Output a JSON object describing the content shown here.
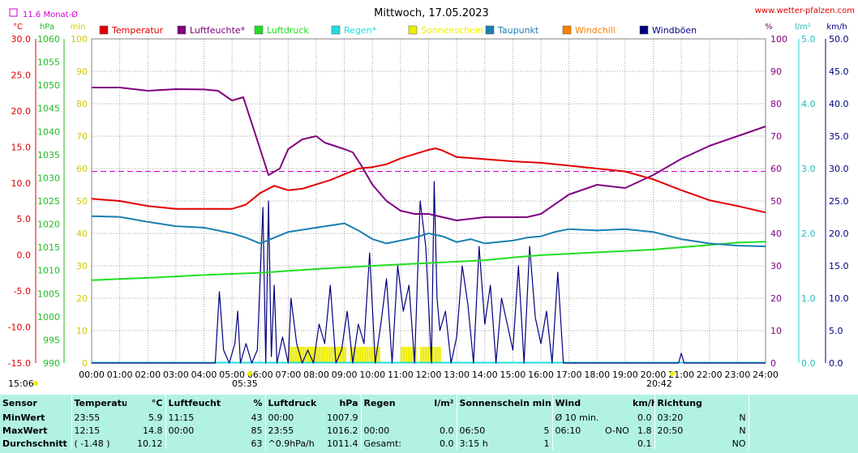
{
  "header": {
    "date_title": "Mittwoch, 17.05.2023",
    "source_url": "www.wetter-pfalzen.com",
    "monthly_avg_label": "11.6 Monat-Ø",
    "start_time": "15:06",
    "sunrise_time": "05:35",
    "sunset_time": "20:42"
  },
  "axes": {
    "left_units": [
      "°C",
      "hPa",
      "min"
    ],
    "right_units": [
      "%",
      "l/m²",
      "km/h"
    ],
    "temp_ticks": [
      "30.0",
      "25.0",
      "20.0",
      "15.0",
      "10.0",
      "5.0",
      "0.0",
      "-5.0",
      "-10.0",
      "-15.0"
    ],
    "pressure_ticks": [
      "1060",
      "1055",
      "1050",
      "1045",
      "1040",
      "1035",
      "1030",
      "1025",
      "1020",
      "1015",
      "1010",
      "1005",
      "1000",
      "995",
      "990"
    ],
    "min_ticks": [
      "100",
      "90",
      "80",
      "70",
      "60",
      "50",
      "40",
      "30",
      "20",
      "10",
      "0"
    ],
    "humidity_ticks": [
      "100",
      "90",
      "80",
      "70",
      "60",
      "50",
      "40",
      "30",
      "20",
      "10",
      "0"
    ],
    "rain_ticks": [
      "5.0",
      "4.0",
      "3.0",
      "2.0",
      "1.0",
      "0.0"
    ],
    "wind_ticks": [
      "50.0",
      "45.0",
      "40.0",
      "35.0",
      "30.0",
      "25.0",
      "20.0",
      "15.0",
      "10.0",
      "5.0",
      "0.0"
    ],
    "x_ticks": [
      "00:00",
      "01:00",
      "02:00",
      "03:00",
      "04:00",
      "05:00",
      "06:00",
      "07:00",
      "08:00",
      "09:00",
      "10:00",
      "11:00",
      "12:00",
      "13:00",
      "14:00",
      "15:00",
      "16:00",
      "17:00",
      "18:00",
      "19:00",
      "20:00",
      "21:00",
      "22:00",
      "23:00",
      "24:00"
    ]
  },
  "legend": [
    {
      "label": "Temperatur",
      "color": "#e00000"
    },
    {
      "label": "Luftfeuchte*",
      "color": "#800080"
    },
    {
      "label": "Luftdruck",
      "color": "#22dd22"
    },
    {
      "label": "Regen*",
      "color": "#22dddd"
    },
    {
      "label": "Sonnenschein",
      "color": "#eeee00"
    },
    {
      "label": "Taupunkt",
      "color": "#1a7fb0"
    },
    {
      "label": "Windchill",
      "color": "#ff7f00"
    },
    {
      "label": "Windböen",
      "color": "#000080"
    }
  ],
  "chart_data": {
    "type": "line",
    "title": "Mittwoch, 17.05.2023",
    "x_range": [
      0,
      24
    ],
    "monthly_avg_temp": 11.6,
    "series": [
      {
        "name": "Temperatur",
        "axis": "temp",
        "ylim": [
          -15,
          30
        ],
        "color": "#e00000",
        "x": [
          0,
          1,
          2,
          3,
          4,
          5,
          5.5,
          6,
          6.5,
          7,
          7.5,
          8,
          8.5,
          9,
          9.5,
          10,
          10.5,
          11,
          11.5,
          12,
          12.25,
          12.5,
          13,
          14,
          15,
          16,
          17,
          18,
          19,
          20,
          21,
          22,
          23,
          24
        ],
        "y": [
          7.8,
          7.5,
          6.8,
          6.4,
          6.4,
          6.4,
          7.0,
          8.6,
          9.6,
          9.0,
          9.2,
          9.8,
          10.4,
          11.2,
          12.0,
          12.2,
          12.6,
          13.4,
          14.0,
          14.6,
          14.8,
          14.5,
          13.6,
          13.3,
          13.0,
          12.8,
          12.4,
          12.0,
          11.6,
          10.5,
          9.0,
          7.6,
          6.8,
          5.9
        ]
      },
      {
        "name": "Luftfeuchte*",
        "axis": "humidity",
        "ylim": [
          0,
          100
        ],
        "color": "#800080",
        "x": [
          0,
          1,
          2,
          3,
          4,
          4.5,
          5,
          5.4,
          6,
          6.3,
          6.7,
          7,
          7.5,
          8,
          8.3,
          9,
          9.3,
          9.6,
          10,
          10.5,
          11,
          11.5,
          12,
          13,
          14,
          15,
          15.5,
          16,
          17,
          18,
          19,
          20,
          21,
          22,
          23,
          24
        ],
        "y": [
          85,
          85,
          84,
          84.5,
          84.4,
          84,
          81,
          82,
          66,
          58,
          60,
          66,
          69,
          70,
          68,
          66,
          65,
          61,
          55,
          50,
          47,
          46,
          46,
          44,
          45,
          45,
          45,
          46,
          52,
          55,
          54,
          58,
          63,
          67,
          70,
          73
        ]
      },
      {
        "name": "Luftdruck",
        "axis": "pressure",
        "ylim": [
          990,
          1060
        ],
        "color": "#22dd22",
        "x": [
          0,
          2,
          4,
          6,
          8,
          10,
          12,
          14,
          15,
          16,
          17,
          18,
          19,
          20,
          21,
          22,
          23,
          24
        ],
        "y": [
          1007.9,
          1008.4,
          1009.0,
          1009.5,
          1010.3,
          1011.0,
          1011.6,
          1012.2,
          1012.8,
          1013.3,
          1013.6,
          1013.9,
          1014.2,
          1014.5,
          1015.0,
          1015.5,
          1016.0,
          1016.2
        ]
      },
      {
        "name": "Taupunkt",
        "axis": "temp",
        "ylim": [
          -15,
          30
        ],
        "color": "#1a7fb0",
        "x": [
          0,
          1,
          2,
          3,
          4,
          5,
          5.5,
          6,
          6.5,
          7,
          8,
          9,
          9.5,
          10,
          10.5,
          11,
          11.5,
          12,
          12.5,
          13,
          13.5,
          14,
          15,
          15.5,
          16,
          16.5,
          17,
          18,
          19,
          20,
          21,
          22,
          23,
          24
        ],
        "y": [
          5.4,
          5.3,
          4.6,
          4.0,
          3.8,
          3.0,
          2.4,
          1.6,
          2.4,
          3.2,
          3.8,
          4.4,
          3.4,
          2.2,
          1.6,
          2.0,
          2.4,
          3.0,
          2.6,
          1.8,
          2.2,
          1.6,
          2.0,
          2.4,
          2.6,
          3.2,
          3.6,
          3.4,
          3.6,
          3.2,
          2.2,
          1.6,
          1.3,
          1.2
        ]
      },
      {
        "name": "Windböen",
        "axis": "wind",
        "ylim": [
          0,
          50
        ],
        "color": "#000080",
        "x": [
          0,
          4.4,
          4.55,
          4.7,
          4.9,
          5.1,
          5.2,
          5.3,
          5.5,
          5.7,
          5.9,
          6.1,
          6.2,
          6.3,
          6.4,
          6.5,
          6.6,
          6.8,
          7.0,
          7.1,
          7.3,
          7.5,
          7.7,
          7.9,
          8.1,
          8.3,
          8.5,
          8.7,
          8.9,
          9.1,
          9.3,
          9.5,
          9.7,
          9.9,
          10.1,
          10.3,
          10.5,
          10.7,
          10.9,
          11.1,
          11.3,
          11.5,
          11.7,
          11.9,
          12.1,
          12.2,
          12.3,
          12.4,
          12.6,
          12.8,
          13.0,
          13.2,
          13.4,
          13.6,
          13.8,
          14.0,
          14.2,
          14.4,
          14.6,
          14.8,
          15.0,
          15.2,
          15.4,
          15.6,
          15.8,
          16.0,
          16.2,
          16.4,
          16.6,
          16.8,
          17.0,
          20.9,
          21.0,
          21.1,
          24
        ],
        "y": [
          0,
          0,
          11,
          2,
          0,
          3,
          8,
          0,
          3,
          0,
          2,
          24,
          0,
          25,
          1,
          12,
          0,
          4,
          0,
          10,
          3,
          0,
          2,
          0,
          6,
          3,
          12,
          0,
          2,
          8,
          0,
          6,
          3,
          17,
          0,
          6,
          13,
          0,
          15,
          8,
          12,
          0,
          25,
          18,
          0,
          28,
          10,
          5,
          8,
          0,
          4,
          15,
          9,
          0,
          18,
          6,
          12,
          0,
          10,
          6,
          2,
          15,
          0,
          18,
          7,
          3,
          8,
          0,
          14,
          0,
          0,
          0,
          1.5,
          0,
          0
        ]
      }
    ],
    "sunshine_periods": [
      [
        7.0,
        9.0
      ],
      [
        9.2,
        10.2
      ],
      [
        11.0,
        11.5
      ],
      [
        11.7,
        12.4
      ]
    ]
  },
  "stats": {
    "headers": {
      "sensor": "Sensor",
      "temp": "Temperatur",
      "temp_unit": "°C",
      "hum": "Luftfeuchte",
      "hum_unit": "%",
      "press": "Luftdruck",
      "press_unit": "hPa",
      "rain": "Regen",
      "rain_unit": "l/m²",
      "sun": "Sonnenschein min",
      "wind": "Wind",
      "wind_unit": "km/h",
      "dir": "Richtung"
    },
    "rows": [
      {
        "label": "MinWert",
        "temp_time": "23:55",
        "temp_val": "5.9",
        "hum_time": "11:15",
        "hum_val": "43",
        "press_time": "00:00",
        "press_val": "1007.9",
        "rain_time": "",
        "rain_val": "",
        "sun_time": "",
        "sun_val": "",
        "wind_time": "Ø 10 min.",
        "wind_dir": "",
        "wind_val": "0.0",
        "dir_time": "03:20",
        "dir_val": "N"
      },
      {
        "label": "MaxWert",
        "temp_time": "12:15",
        "temp_val": "14.8",
        "hum_time": "00:00",
        "hum_val": "85",
        "press_time": "23:55",
        "press_val": "1016.2",
        "rain_time": "00:00",
        "rain_val": "0.0",
        "sun_time": "06:50",
        "sun_val": "5",
        "wind_time": "06:10",
        "wind_dir": "O-NO",
        "wind_val": "1.8",
        "dir_time": "20:50",
        "dir_val": "N"
      },
      {
        "label": "Durchschnitt",
        "temp_time": "( -1.48 )",
        "temp_val": "10.12",
        "hum_time": "",
        "hum_val": "63",
        "press_time": "^0.9hPa/h",
        "press_val": "1011.4",
        "rain_time": "Gesamt:",
        "rain_val": "0.0",
        "sun_time": "3:15 h",
        "sun_val": "1",
        "wind_time": "",
        "wind_dir": "",
        "wind_val": "0.1",
        "dir_time": "",
        "dir_val": "NO"
      }
    ]
  }
}
